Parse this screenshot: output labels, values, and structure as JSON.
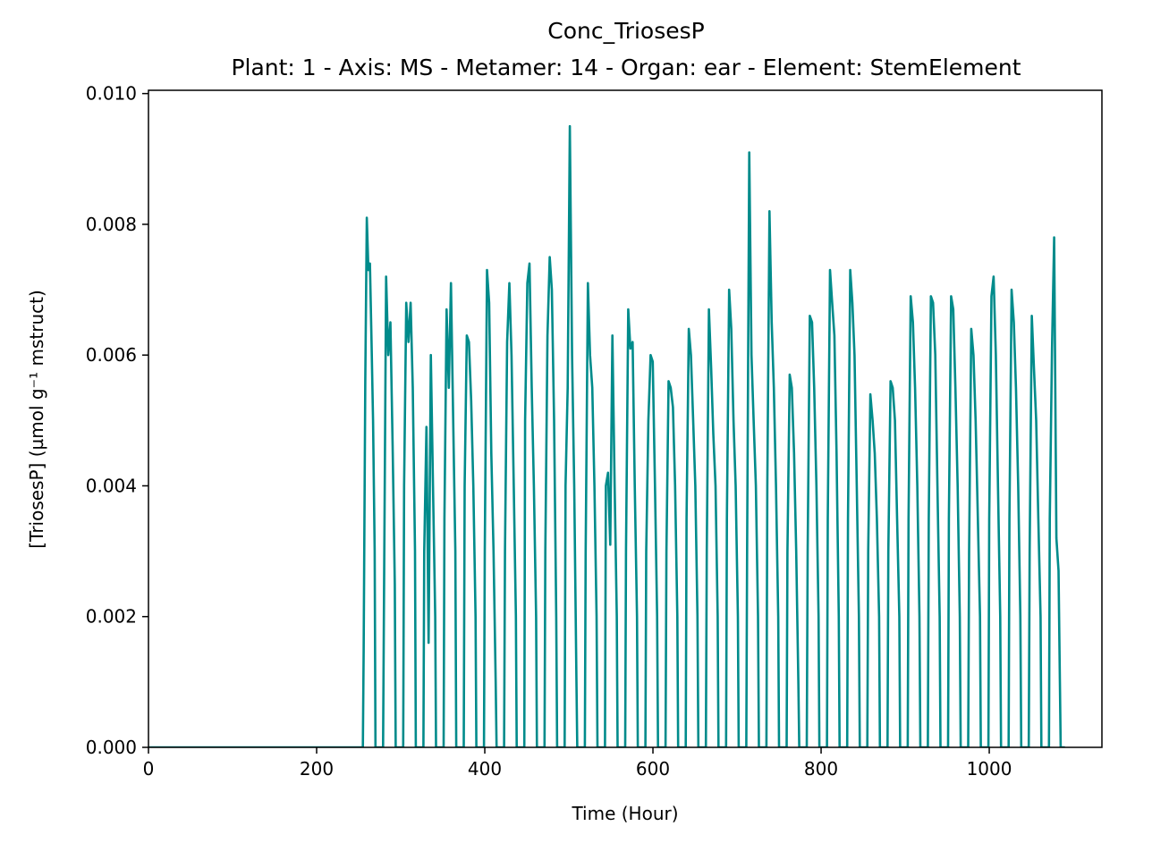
{
  "chart_data": {
    "type": "line",
    "title": "Conc_TriosesP",
    "subtitle": "Plant: 1 - Axis: MS - Metamer: 14 - Organ: ear - Element: StemElement",
    "xlabel": "Time (Hour)",
    "ylabel": "[TriosesP] (µmol g⁻¹ mstruct)",
    "xlim": [
      0,
      1134
    ],
    "ylim": [
      0,
      0.01005
    ],
    "xticks": [
      0,
      200,
      400,
      600,
      800,
      1000
    ],
    "yticks": [
      0.0,
      0.002,
      0.004,
      0.006,
      0.008,
      0.01
    ],
    "xtick_labels": [
      "0",
      "200",
      "400",
      "600",
      "800",
      "1000"
    ],
    "ytick_labels": [
      "0.000",
      "0.002",
      "0.004",
      "0.006",
      "0.008",
      "0.010"
    ],
    "grid": false,
    "series": [
      {
        "color": "#008b8b",
        "daily_peaks": [
          {
            "day": 10,
            "start": 256,
            "values": [
              0.0015,
              0.0056,
              0.0081,
              0.0073,
              0.0074,
              0.0062,
              0.005,
              0.003
            ]
          },
          {
            "day": 11,
            "start": 280,
            "values": [
              0.002,
              0.0072,
              0.006,
              0.0065,
              0.0046,
              0.0025
            ]
          },
          {
            "day": 12,
            "start": 304,
            "values": [
              0.004,
              0.0068,
              0.0062,
              0.0068,
              0.0055,
              0.003
            ]
          },
          {
            "day": 13,
            "start": 328,
            "values": [
              0.003,
              0.0049,
              0.0016,
              0.006,
              0.004,
              0.002
            ]
          },
          {
            "day": 14,
            "start": 352,
            "values": [
              0.0035,
              0.0067,
              0.0055,
              0.0071,
              0.005,
              0.003
            ]
          },
          {
            "day": 15,
            "start": 376,
            "values": [
              0.004,
              0.0063,
              0.0062,
              0.0053,
              0.004,
              0.002
            ]
          },
          {
            "day": 16,
            "start": 400,
            "values": [
              0.003,
              0.0073,
              0.0068,
              0.0045,
              0.003,
              0.001
            ]
          },
          {
            "day": 17,
            "start": 424,
            "values": [
              0.003,
              0.0062,
              0.0071,
              0.006,
              0.004,
              0.002
            ]
          },
          {
            "day": 18,
            "start": 448,
            "values": [
              0.005,
              0.0071,
              0.0074,
              0.0055,
              0.004,
              0.002
            ]
          },
          {
            "day": 19,
            "start": 472,
            "values": [
              0.003,
              0.0063,
              0.0075,
              0.007,
              0.005,
              0.002
            ]
          },
          {
            "day": 20,
            "start": 496,
            "values": [
              0.004,
              0.0055,
              0.0095,
              0.006,
              0.004,
              0.001
            ]
          },
          {
            "day": 21,
            "start": 520,
            "values": [
              0.003,
              0.0071,
              0.006,
              0.0055,
              0.004,
              0.002
            ]
          },
          {
            "day": 22,
            "start": 544,
            "values": [
              0.004,
              0.0042,
              0.0031,
              0.0063,
              0.004,
              0.002
            ]
          },
          {
            "day": 23,
            "start": 568,
            "values": [
              0.003,
              0.0067,
              0.0061,
              0.0062,
              0.004,
              0.002
            ]
          },
          {
            "day": 24,
            "start": 592,
            "values": [
              0.003,
              0.005,
              0.006,
              0.0059,
              0.004,
              0.002
            ]
          },
          {
            "day": 25,
            "start": 616,
            "values": [
              0.003,
              0.0056,
              0.0055,
              0.0052,
              0.004,
              0.002
            ]
          },
          {
            "day": 26,
            "start": 640,
            "values": [
              0.0035,
              0.0064,
              0.006,
              0.005,
              0.004,
              0.002
            ]
          },
          {
            "day": 27,
            "start": 664,
            "values": [
              0.003,
              0.0067,
              0.0058,
              0.0048,
              0.004,
              0.002
            ]
          },
          {
            "day": 28,
            "start": 688,
            "values": [
              0.0035,
              0.007,
              0.0064,
              0.005,
              0.004,
              0.002
            ]
          },
          {
            "day": 29,
            "start": 712,
            "values": [
              0.003,
              0.0091,
              0.006,
              0.005,
              0.004,
              0.002
            ]
          },
          {
            "day": 30,
            "start": 736,
            "values": [
              0.004,
              0.0082,
              0.0065,
              0.0055,
              0.004,
              0.002
            ]
          },
          {
            "day": 31,
            "start": 760,
            "values": [
              0.003,
              0.0057,
              0.0055,
              0.0045,
              0.003,
              0.001
            ]
          },
          {
            "day": 32,
            "start": 784,
            "values": [
              0.003,
              0.0066,
              0.0065,
              0.0055,
              0.004,
              0.002
            ]
          },
          {
            "day": 33,
            "start": 808,
            "values": [
              0.0035,
              0.0073,
              0.0068,
              0.0063,
              0.0045,
              0.002
            ]
          },
          {
            "day": 34,
            "start": 832,
            "values": [
              0.0035,
              0.0073,
              0.0068,
              0.006,
              0.004,
              0.002
            ]
          },
          {
            "day": 35,
            "start": 856,
            "values": [
              0.003,
              0.0054,
              0.005,
              0.0045,
              0.0035,
              0.002
            ]
          },
          {
            "day": 36,
            "start": 880,
            "values": [
              0.003,
              0.0056,
              0.0055,
              0.005,
              0.0035,
              0.002
            ]
          },
          {
            "day": 37,
            "start": 904,
            "values": [
              0.0035,
              0.0069,
              0.0065,
              0.0055,
              0.004,
              0.002
            ]
          },
          {
            "day": 38,
            "start": 928,
            "values": [
              0.0035,
              0.0069,
              0.0068,
              0.006,
              0.004,
              0.002
            ]
          },
          {
            "day": 39,
            "start": 952,
            "values": [
              0.0035,
              0.0069,
              0.0067,
              0.0055,
              0.004,
              0.002
            ]
          },
          {
            "day": 40,
            "start": 976,
            "values": [
              0.003,
              0.0064,
              0.006,
              0.005,
              0.0035,
              0.002
            ]
          },
          {
            "day": 41,
            "start": 1000,
            "values": [
              0.0035,
              0.0069,
              0.0072,
              0.006,
              0.004,
              0.002
            ]
          },
          {
            "day": 42,
            "start": 1024,
            "values": [
              0.0035,
              0.007,
              0.0065,
              0.0055,
              0.004,
              0.002
            ]
          },
          {
            "day": 43,
            "start": 1048,
            "values": [
              0.003,
              0.0066,
              0.0058,
              0.005,
              0.0035,
              0.002
            ]
          },
          {
            "day": 44,
            "start": 1072,
            "values": [
              0.0035,
              0.0061,
              0.0078,
              0.0032,
              0.0027,
              0.0
            ]
          }
        ],
        "end_x": 1090
      }
    ]
  }
}
